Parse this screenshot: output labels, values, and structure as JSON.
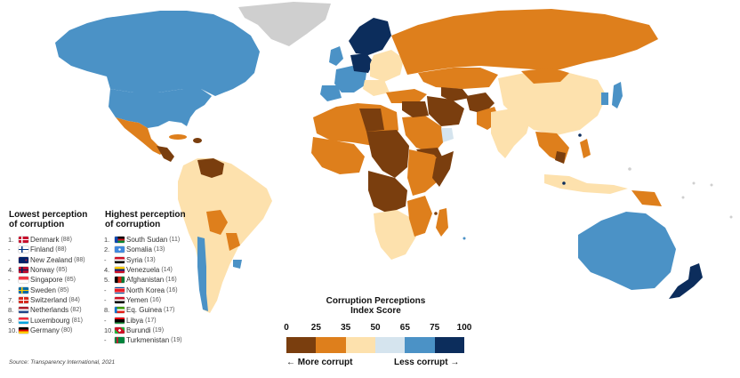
{
  "colors": {
    "sea": "#ffffff",
    "no_data": "#cfcfcf",
    "scale": [
      "#7a3e0e",
      "#de7f1c",
      "#fde1ad",
      "#d5e4ee",
      "#4b92c6",
      "#0c2d5c"
    ]
  },
  "lowest": {
    "title_line1": "Lowest perception",
    "title_line2": "of corruption",
    "items": [
      {
        "rank": "1.",
        "name": "Denmark",
        "score": "(88)",
        "flag": "denmark-flag-icon"
      },
      {
        "rank": "-",
        "name": "Finland",
        "score": "(88)",
        "flag": "finland-flag-icon"
      },
      {
        "rank": "-",
        "name": "New Zealand",
        "score": "(88)",
        "flag": "new-zealand-flag-icon"
      },
      {
        "rank": "4.",
        "name": "Norway",
        "score": "(85)",
        "flag": "norway-flag-icon"
      },
      {
        "rank": "-",
        "name": "Singapore",
        "score": "(85)",
        "flag": "singapore-flag-icon"
      },
      {
        "rank": "-",
        "name": "Sweden",
        "score": "(85)",
        "flag": "sweden-flag-icon"
      },
      {
        "rank": "7.",
        "name": "Switzerland",
        "score": "(84)",
        "flag": "switzerland-flag-icon"
      },
      {
        "rank": "8.",
        "name": "Netherlands",
        "score": "(82)",
        "flag": "netherlands-flag-icon"
      },
      {
        "rank": "9.",
        "name": "Luxembourg",
        "score": "(81)",
        "flag": "luxembourg-flag-icon"
      },
      {
        "rank": "10.",
        "name": "Germany",
        "score": "(80)",
        "flag": "germany-flag-icon"
      }
    ]
  },
  "highest": {
    "title_line1": "Highest perception",
    "title_line2": "of corruption",
    "items": [
      {
        "rank": "1.",
        "name": "South Sudan",
        "score": "(11)",
        "flag": "south-sudan-flag-icon"
      },
      {
        "rank": "2.",
        "name": "Somalia",
        "score": "(13)",
        "flag": "somalia-flag-icon"
      },
      {
        "rank": "-",
        "name": "Syria",
        "score": "(13)",
        "flag": "syria-flag-icon"
      },
      {
        "rank": "4.",
        "name": "Venezuela",
        "score": "(14)",
        "flag": "venezuela-flag-icon"
      },
      {
        "rank": "5.",
        "name": "Afghanistan",
        "score": "(16)",
        "flag": "afghanistan-flag-icon"
      },
      {
        "rank": "-",
        "name": "North Korea",
        "score": "(16)",
        "flag": "north-korea-flag-icon"
      },
      {
        "rank": "-",
        "name": "Yemen",
        "score": "(16)",
        "flag": "yemen-flag-icon"
      },
      {
        "rank": "8.",
        "name": "Eq. Guinea",
        "score": "(17)",
        "flag": "eq-guinea-flag-icon"
      },
      {
        "rank": "-",
        "name": "Libya",
        "score": "(17)",
        "flag": "libya-flag-icon"
      },
      {
        "rank": "10.",
        "name": "Burundi",
        "score": "(19)",
        "flag": "burundi-flag-icon"
      },
      {
        "rank": "-",
        "name": "Turkmenistan",
        "score": "(19)",
        "flag": "turkmenistan-flag-icon"
      }
    ]
  },
  "legend": {
    "title_line1": "Corruption Perceptions",
    "title_line2": "Index Score",
    "ticks": [
      "0",
      "25",
      "35",
      "50",
      "65",
      "75",
      "100"
    ],
    "more": "← More corrupt",
    "less": "Less corrupt →"
  },
  "source": "Source: Transparency International, 2021"
}
